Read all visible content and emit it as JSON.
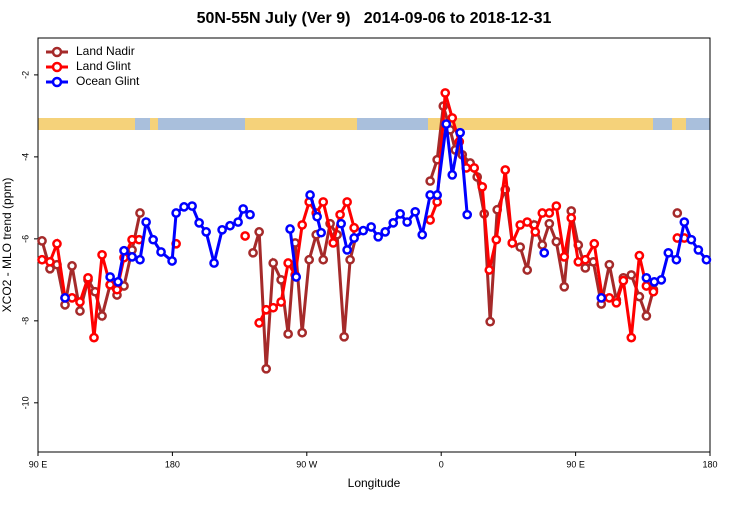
{
  "chart_data": {
    "type": "line",
    "title": "50N-55N July (Ver 9)   2014-09-06 to 2018-12-31",
    "x_label": "Longitude",
    "y_label": "XCO2 - MLO trend (ppm)",
    "xlim": [
      90,
      540
    ],
    "ylim": [
      -11.2,
      -1.1
    ],
    "xticks": [
      {
        "value": 90,
        "label": "90 E"
      },
      {
        "value": 180,
        "label": "180"
      },
      {
        "value": 270,
        "label": "90 W"
      },
      {
        "value": 360,
        "label": "0"
      },
      {
        "value": 450,
        "label": "90 E"
      },
      {
        "value": 540,
        "label": "180"
      }
    ],
    "yticks": [
      -2,
      -4,
      -6,
      -8,
      -10
    ],
    "legend_position": "top-left",
    "series": [
      {
        "name": "Land Nadir",
        "color": "#a52a2a",
        "x": [
          92.7,
          98,
          102.7,
          108.1,
          112.8,
          118.1,
          123.5,
          128.2,
          132.9,
          138.3,
          142.9,
          147.6,
          153,
          158.3,
          null,
          234,
          238.1,
          242.8,
          247.5,
          252.8,
          257.5,
          262.2,
          266.9,
          271.6,
          276.3,
          281,
          285.6,
          290.3,
          295,
          299,
          303.7,
          null,
          352.6,
          357.3,
          361.4,
          366,
          369.4,
          374.1,
          379.4,
          384.1,
          388.8,
          392.8,
          397.5,
          402.9,
          407.6,
          412.9,
          417.6,
          422.3,
          427.7,
          432.4,
          437.1,
          442.4,
          447.1,
          451.8,
          456.5,
          461.9,
          467.2,
          472.6,
          477.3,
          482,
          487.3,
          492.7,
          497.4,
          502.1,
          null,
          518.1
        ],
        "values": [
          -6.05,
          -6.73,
          -6.63,
          -7.61,
          -6.66,
          -7.76,
          -7.0,
          -7.29,
          -7.88,
          -7.12,
          -7.37,
          -7.15,
          -6.27,
          -5.37,
          null,
          -6.34,
          -5.83,
          -9.17,
          -6.59,
          -7.0,
          -8.32,
          -6.1,
          -8.29,
          -6.51,
          -5.9,
          -6.51,
          -5.63,
          -5.9,
          -8.39,
          -6.51,
          -5.83,
          null,
          -4.59,
          -4.07,
          -2.76,
          -3.34,
          -3.83,
          -3.95,
          -4.15,
          -4.49,
          -5.39,
          -8.02,
          -5.29,
          -4.8,
          -6.1,
          -6.2,
          -6.76,
          -5.66,
          -6.15,
          -5.63,
          -6.07,
          -7.17,
          -5.32,
          -6.15,
          -6.71,
          -6.56,
          -7.59,
          -6.63,
          -7.49,
          -6.95,
          -6.88,
          -7.41,
          -7.88,
          -7.24,
          null,
          -5.37
        ]
      },
      {
        "name": "Land Glint",
        "color": "#ff0000",
        "x": [
          92.7,
          98,
          102.7,
          108.1,
          112.8,
          118.1,
          123.5,
          127.5,
          132.9,
          138.3,
          142.9,
          147.6,
          153,
          157.7,
          null,
          182.5,
          null,
          228.7,
          null,
          238.1,
          242.8,
          247.5,
          252.8,
          257.5,
          262.2,
          266.9,
          271.6,
          276.3,
          281,
          287.7,
          292.3,
          297,
          301.7,
          null,
          352.6,
          357.3,
          362.7,
          367.4,
          372.1,
          376.8,
          382.1,
          387.5,
          392.2,
          396.9,
          402.9,
          407.6,
          412.9,
          417.6,
          423,
          427.7,
          432.4,
          437.1,
          442.4,
          447.1,
          451.8,
          456.5,
          462.5,
          467.9,
          472.6,
          477.3,
          482,
          487.3,
          492.7,
          497.4,
          502.1,
          null,
          518.1,
          522.8
        ],
        "values": [
          -6.51,
          -6.56,
          -6.12,
          -7.44,
          -7.44,
          -7.54,
          -6.95,
          -8.41,
          -6.39,
          -7.12,
          -7.24,
          -6.46,
          -6.02,
          -6.02,
          null,
          -6.12,
          null,
          -5.93,
          null,
          -8.05,
          -7.73,
          -7.68,
          -7.54,
          -6.59,
          -6.88,
          -5.66,
          -5.1,
          -5.37,
          -5.1,
          -6.1,
          -5.41,
          -5.1,
          -5.73,
          null,
          -5.54,
          -5.1,
          -2.44,
          -3.05,
          -3.63,
          -4.27,
          -4.27,
          -4.73,
          -6.76,
          -6.02,
          -4.32,
          -6.1,
          -5.66,
          -5.59,
          -5.83,
          -5.37,
          -5.37,
          -5.2,
          -6.44,
          -5.49,
          -6.56,
          -6.51,
          -6.12,
          -7.44,
          -7.44,
          -7.56,
          -7.02,
          -8.41,
          -6.41,
          -7.15,
          -7.29,
          null,
          -5.98,
          -5.98
        ]
      },
      {
        "name": "Ocean Glint",
        "color": "#0000ff",
        "x": [
          108.1,
          null,
          138.3,
          143.6,
          147.6,
          153,
          158.3,
          162.4,
          167.1,
          172.4,
          179.8,
          182.5,
          187.8,
          193.2,
          197.9,
          202.6,
          207.9,
          213.3,
          218.6,
          224,
          227.4,
          232,
          null,
          258.8,
          262.9,
          null,
          272.2,
          276.9,
          279.6,
          null,
          293,
          297,
          301.7,
          307.8,
          313.1,
          317.8,
          322.5,
          327.9,
          332.5,
          337.2,
          342.6,
          347.3,
          352.6,
          357.3,
          363.4,
          367.4,
          372.7,
          377.4,
          null,
          429,
          null,
          467.2,
          null,
          497.4,
          502.7,
          507.4,
          512.1,
          517.5,
          522.8,
          527.5,
          532.2,
          537.6
        ],
        "values": [
          -7.44,
          null,
          -6.93,
          -7.05,
          -6.29,
          -6.44,
          -6.51,
          -5.59,
          -6.02,
          -6.32,
          -6.54,
          -5.37,
          -5.22,
          -5.2,
          -5.61,
          -5.83,
          -6.59,
          -5.78,
          -5.68,
          -5.59,
          -5.27,
          -5.41,
          null,
          -5.76,
          -6.93,
          null,
          -4.93,
          -5.46,
          -5.85,
          null,
          -5.63,
          -6.27,
          -5.98,
          -5.8,
          -5.71,
          -5.95,
          -5.83,
          -5.61,
          -5.39,
          -5.59,
          -5.34,
          -5.9,
          -4.93,
          -4.93,
          -3.2,
          -4.44,
          -3.41,
          -5.41,
          null,
          -6.34,
          null,
          -7.44,
          null,
          -6.95,
          -7.05,
          -7.0,
          -6.34,
          -6.51,
          -5.59,
          -6.02,
          -6.27,
          -6.51
        ]
      }
    ]
  }
}
